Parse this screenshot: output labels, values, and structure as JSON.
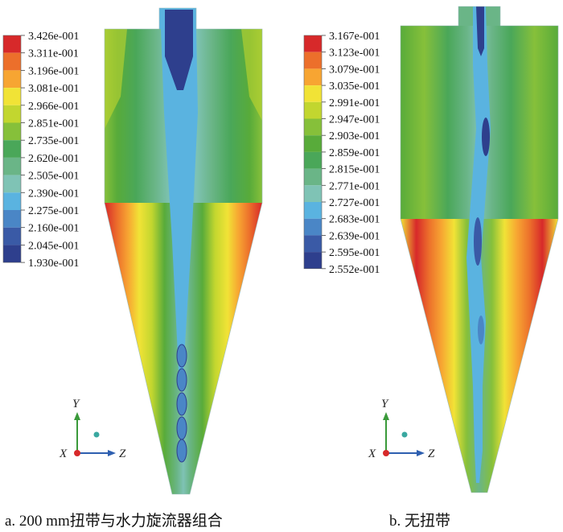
{
  "panels": [
    {
      "id": "a",
      "caption": "a. 200 mm扭带与水力旋流器组合",
      "legend": [
        "3.426e-001",
        "3.311e-001",
        "3.196e-001",
        "3.081e-001",
        "2.966e-001",
        "2.851e-001",
        "2.735e-001",
        "2.620e-001",
        "2.505e-001",
        "2.390e-001",
        "2.275e-001",
        "2.160e-001",
        "2.045e-001",
        "1.930e-001"
      ]
    },
    {
      "id": "b",
      "caption": "b. 无扭带",
      "legend": [
        "3.167e-001",
        "3.123e-001",
        "3.079e-001",
        "3.035e-001",
        "2.991e-001",
        "2.947e-001",
        "2.903e-001",
        "2.859e-001",
        "2.815e-001",
        "2.771e-001",
        "2.727e-001",
        "2.683e-001",
        "2.639e-001",
        "2.595e-001",
        "2.552e-001"
      ]
    }
  ],
  "legend_colors": [
    "#d7292a",
    "#ec6f2b",
    "#f7a532",
    "#f1e336",
    "#c2d62f",
    "#86c03a",
    "#58ab3a",
    "#4aa759",
    "#6ab587",
    "#7fc3b5",
    "#5ab3e0",
    "#4a86c6",
    "#3a5aa6",
    "#2e3f8d"
  ],
  "axes": {
    "x": "X",
    "y": "Y",
    "z": "Z"
  }
}
